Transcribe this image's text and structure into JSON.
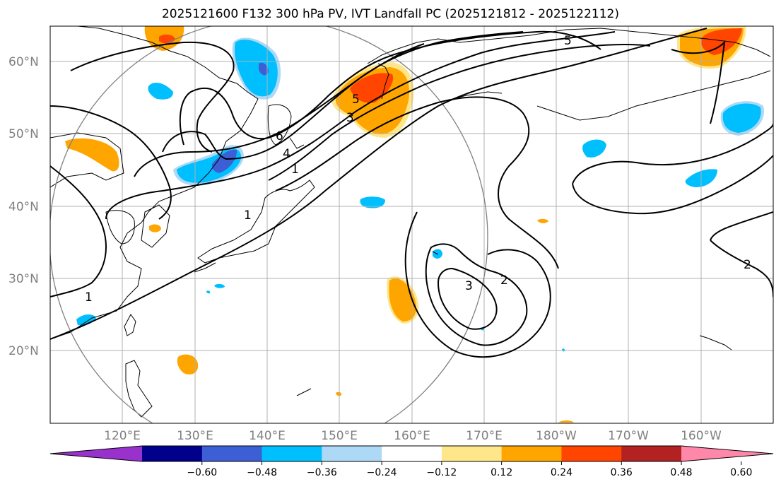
{
  "title": "2025121600 F132 300 hPa PV, IVT Landfall PC (2025121812 - 2025122112)",
  "lat_labels": [
    "60°N",
    "50°N",
    "40°N",
    "30°N",
    "20°N"
  ],
  "lon_labels": [
    "120°E",
    "130°E",
    "140°E",
    "150°E",
    "160°E",
    "170°E",
    "180°W",
    "170°W",
    "160°W"
  ],
  "contour_labels": [
    "1",
    "1",
    "1",
    "2",
    "2",
    "3",
    "3",
    "4",
    "5",
    "5",
    "6"
  ],
  "colorbar": {
    "ticks": [
      "−0.60",
      "−0.48",
      "−0.36",
      "−0.24",
      "−0.12",
      "0.12",
      "0.24",
      "0.36",
      "0.48",
      "0.60"
    ],
    "colors": [
      "#9932cc",
      "#00008b",
      "#3d5fd6",
      "#00bfff",
      "#add8f6",
      "#ffffff",
      "#ffe68a",
      "#ffa500",
      "#ff4500",
      "#b22222",
      "#ff88aa"
    ]
  }
}
